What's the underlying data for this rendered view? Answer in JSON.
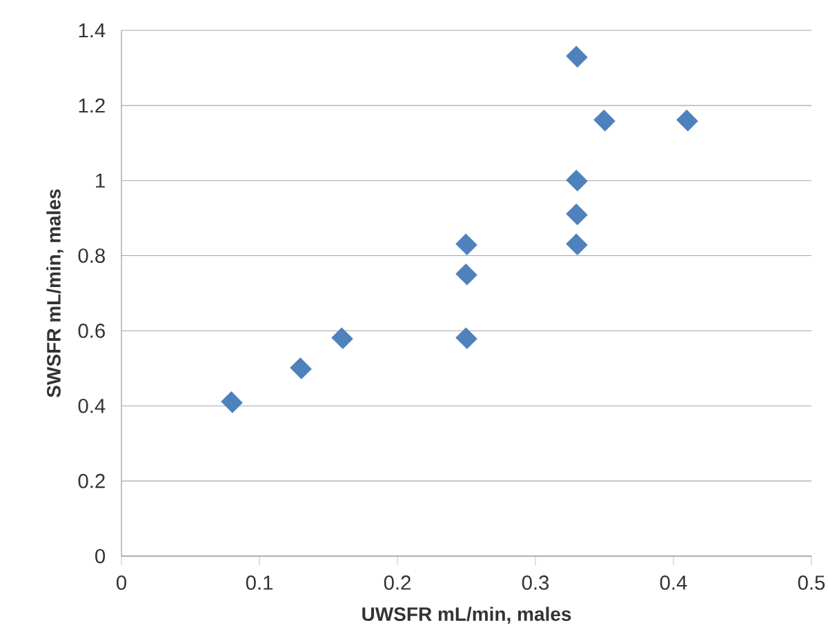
{
  "chart_data": {
    "type": "scatter",
    "xlabel": "UWSFR mL/min, males",
    "ylabel": "SWSFR mL/min, males",
    "x": [
      0.08,
      0.13,
      0.16,
      0.25,
      0.25,
      0.25,
      0.33,
      0.33,
      0.33,
      0.33,
      0.35,
      0.41
    ],
    "series": [
      {
        "color": "#4f81bd",
        "values": [
          0.41,
          0.5,
          0.58,
          0.58,
          0.75,
          0.83,
          0.83,
          0.91,
          1.0,
          1.33,
          1.16,
          1.16
        ]
      }
    ],
    "xlim": [
      0,
      0.5
    ],
    "ylim": [
      0,
      1.4
    ],
    "xticks": [
      0,
      0.1,
      0.2,
      0.3,
      0.4,
      0.5
    ],
    "yticks": [
      0,
      0.2,
      0.4,
      0.6,
      0.8,
      1,
      1.2,
      1.4
    ],
    "grid": "y",
    "marker": "diamond"
  }
}
